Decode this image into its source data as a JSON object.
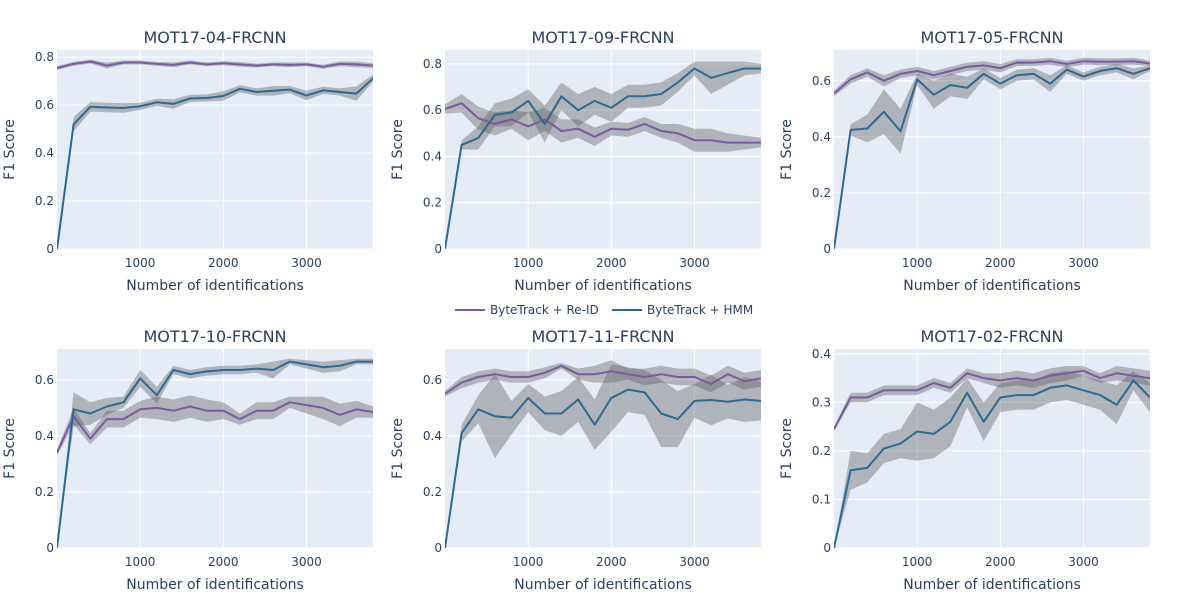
{
  "chart_data": {
    "type": "line",
    "x_positions": [
      0,
      200,
      400,
      600,
      800,
      1000,
      1200,
      1400,
      1600,
      1800,
      2000,
      2200,
      2400,
      2600,
      2800,
      3000,
      3200,
      3400,
      3600,
      3800
    ],
    "xlim": [
      0,
      3800
    ],
    "x_ticks": [
      1000,
      2000,
      3000
    ],
    "xlabel": "Number of identifications",
    "ylabel": "F1 Score",
    "legend": [
      {
        "name": "ByteTrack + Re-ID",
        "color": "#7a5aa5"
      },
      {
        "name": "ByteTrack + HMM",
        "color": "#2a6a96"
      }
    ],
    "band_color": "#5a5a5a",
    "subplots": [
      {
        "title": "MOT17-04-FRCNN",
        "ylim": [
          0,
          0.83
        ],
        "y_ticks": [
          0,
          0.2,
          0.4,
          0.6,
          0.8
        ],
        "series": [
          {
            "name": "ByteTrack + Re-ID",
            "values": [
              0.755,
              0.772,
              0.782,
              0.765,
              0.778,
              0.778,
              0.772,
              0.768,
              0.778,
              0.77,
              0.775,
              0.77,
              0.765,
              0.77,
              0.768,
              0.77,
              0.76,
              0.772,
              0.77,
              0.765
            ],
            "band": [
              0.008,
              0.008,
              0.008,
              0.012,
              0.008,
              0.008,
              0.008,
              0.01,
              0.008,
              0.008,
              0.008,
              0.01,
              0.008,
              0.008,
              0.01,
              0.008,
              0.008,
              0.01,
              0.012,
              0.01
            ]
          },
          {
            "name": "ByteTrack + HMM",
            "values": [
              0.0,
              0.52,
              0.593,
              0.59,
              0.588,
              0.595,
              0.612,
              0.605,
              0.628,
              0.63,
              0.638,
              0.668,
              0.655,
              0.66,
              0.665,
              0.64,
              0.662,
              0.655,
              0.648,
              0.712
            ],
            "band": [
              0.0,
              0.03,
              0.02,
              0.02,
              0.02,
              0.015,
              0.015,
              0.02,
              0.015,
              0.015,
              0.02,
              0.015,
              0.015,
              0.02,
              0.015,
              0.02,
              0.015,
              0.015,
              0.03,
              0.015
            ]
          }
        ]
      },
      {
        "title": "MOT17-09-FRCNN",
        "ylim": [
          0,
          0.86
        ],
        "y_ticks": [
          0,
          0.2,
          0.4,
          0.6,
          0.8
        ],
        "series": [
          {
            "name": "ByteTrack + Re-ID",
            "values": [
              0.605,
              0.63,
              0.565,
              0.54,
              0.56,
              0.53,
              0.56,
              0.51,
              0.52,
              0.485,
              0.52,
              0.515,
              0.54,
              0.51,
              0.5,
              0.47,
              0.47,
              0.46,
              0.46,
              0.46
            ],
            "band": [
              0.02,
              0.04,
              0.05,
              0.05,
              0.04,
              0.06,
              0.05,
              0.05,
              0.04,
              0.04,
              0.03,
              0.03,
              0.03,
              0.03,
              0.04,
              0.05,
              0.05,
              0.04,
              0.03,
              0.02
            ]
          },
          {
            "name": "ByteTrack + HMM",
            "values": [
              0.0,
              0.45,
              0.48,
              0.58,
              0.59,
              0.64,
              0.54,
              0.66,
              0.6,
              0.64,
              0.61,
              0.66,
              0.66,
              0.67,
              0.72,
              0.78,
              0.74,
              0.76,
              0.78,
              0.78
            ],
            "band": [
              0.0,
              0.02,
              0.05,
              0.05,
              0.06,
              0.05,
              0.08,
              0.06,
              0.07,
              0.06,
              0.06,
              0.05,
              0.05,
              0.05,
              0.04,
              0.03,
              0.07,
              0.05,
              0.03,
              0.02
            ]
          }
        ]
      },
      {
        "title": "MOT17-05-FRCNN",
        "ylim": [
          0,
          0.71
        ],
        "y_ticks": [
          0,
          0.2,
          0.4,
          0.6
        ],
        "series": [
          {
            "name": "ByteTrack + Re-ID",
            "values": [
              0.555,
              0.605,
              0.63,
              0.6,
              0.625,
              0.635,
              0.62,
              0.635,
              0.65,
              0.655,
              0.645,
              0.665,
              0.665,
              0.67,
              0.66,
              0.67,
              0.668,
              0.668,
              0.67,
              0.662
            ],
            "band": [
              0.01,
              0.015,
              0.015,
              0.02,
              0.015,
              0.015,
              0.015,
              0.015,
              0.015,
              0.015,
              0.015,
              0.012,
              0.012,
              0.012,
              0.012,
              0.012,
              0.012,
              0.012,
              0.012,
              0.01
            ]
          },
          {
            "name": "ByteTrack + HMM",
            "values": [
              0.0,
              0.425,
              0.43,
              0.49,
              0.42,
              0.605,
              0.55,
              0.585,
              0.575,
              0.625,
              0.59,
              0.62,
              0.625,
              0.59,
              0.64,
              0.615,
              0.635,
              0.645,
              0.625,
              0.645
            ],
            "band": [
              0.0,
              0.02,
              0.05,
              0.08,
              0.08,
              0.02,
              0.05,
              0.04,
              0.04,
              0.02,
              0.02,
              0.02,
              0.02,
              0.03,
              0.015,
              0.015,
              0.015,
              0.015,
              0.02,
              0.01
            ]
          }
        ]
      },
      {
        "title": "MOT17-10-FRCNN",
        "ylim": [
          0,
          0.71
        ],
        "y_ticks": [
          0,
          0.2,
          0.4,
          0.6
        ],
        "series": [
          {
            "name": "ByteTrack + Re-ID",
            "values": [
              0.34,
              0.47,
              0.39,
              0.46,
              0.46,
              0.495,
              0.5,
              0.49,
              0.505,
              0.49,
              0.49,
              0.46,
              0.49,
              0.49,
              0.52,
              0.51,
              0.5,
              0.475,
              0.495,
              0.485
            ],
            "band": [
              0.01,
              0.03,
              0.02,
              0.03,
              0.03,
              0.03,
              0.04,
              0.04,
              0.04,
              0.04,
              0.03,
              0.02,
              0.03,
              0.03,
              0.02,
              0.03,
              0.04,
              0.04,
              0.03,
              0.02
            ]
          },
          {
            "name": "ByteTrack + HMM",
            "values": [
              0.0,
              0.495,
              0.48,
              0.505,
              0.52,
              0.605,
              0.545,
              0.635,
              0.62,
              0.63,
              0.635,
              0.635,
              0.64,
              0.635,
              0.665,
              0.655,
              0.645,
              0.65,
              0.665,
              0.665
            ],
            "band": [
              0.0,
              0.06,
              0.04,
              0.03,
              0.02,
              0.03,
              0.03,
              0.015,
              0.015,
              0.015,
              0.015,
              0.015,
              0.015,
              0.03,
              0.01,
              0.015,
              0.02,
              0.02,
              0.01,
              0.01
            ]
          }
        ]
      },
      {
        "title": "MOT17-11-FRCNN",
        "ylim": [
          0,
          0.71
        ],
        "y_ticks": [
          0,
          0.2,
          0.4,
          0.6
        ],
        "series": [
          {
            "name": "ByteTrack + Re-ID",
            "values": [
              0.55,
              0.59,
              0.61,
              0.62,
              0.61,
              0.61,
              0.625,
              0.65,
              0.62,
              0.62,
              0.63,
              0.62,
              0.61,
              0.62,
              0.61,
              0.61,
              0.585,
              0.62,
              0.595,
              0.605
            ],
            "band": [
              0.01,
              0.02,
              0.02,
              0.02,
              0.02,
              0.02,
              0.02,
              0.01,
              0.02,
              0.03,
              0.04,
              0.02,
              0.03,
              0.03,
              0.03,
              0.03,
              0.03,
              0.03,
              0.03,
              0.03
            ]
          },
          {
            "name": "ByteTrack + HMM",
            "values": [
              0.0,
              0.41,
              0.495,
              0.47,
              0.465,
              0.535,
              0.48,
              0.48,
              0.53,
              0.44,
              0.535,
              0.565,
              0.555,
              0.48,
              0.46,
              0.525,
              0.528,
              0.522,
              0.53,
              0.525
            ],
            "band": [
              0.0,
              0.03,
              0.05,
              0.15,
              0.06,
              0.05,
              0.06,
              0.08,
              0.08,
              0.09,
              0.12,
              0.08,
              0.08,
              0.12,
              0.1,
              0.06,
              0.09,
              0.06,
              0.08,
              0.07
            ]
          }
        ]
      },
      {
        "title": "MOT17-02-FRCNN",
        "ylim": [
          0,
          0.41
        ],
        "y_ticks": [
          0,
          0.1,
          0.2,
          0.3,
          0.4
        ],
        "series": [
          {
            "name": "ByteTrack + Re-ID",
            "values": [
              0.245,
              0.31,
              0.31,
              0.325,
              0.325,
              0.325,
              0.34,
              0.33,
              0.36,
              0.35,
              0.345,
              0.35,
              0.345,
              0.355,
              0.36,
              0.365,
              0.35,
              0.36,
              0.355,
              0.35
            ],
            "band": [
              0.005,
              0.01,
              0.01,
              0.01,
              0.01,
              0.01,
              0.01,
              0.01,
              0.01,
              0.01,
              0.015,
              0.015,
              0.015,
              0.015,
              0.015,
              0.01,
              0.01,
              0.015,
              0.015,
              0.015
            ]
          },
          {
            "name": "ByteTrack + HMM",
            "values": [
              0.0,
              0.16,
              0.165,
              0.205,
              0.215,
              0.24,
              0.235,
              0.26,
              0.32,
              0.26,
              0.31,
              0.315,
              0.315,
              0.33,
              0.335,
              0.325,
              0.315,
              0.295,
              0.345,
              0.31
            ],
            "band": [
              0.0,
              0.04,
              0.03,
              0.03,
              0.03,
              0.06,
              0.05,
              0.05,
              0.03,
              0.04,
              0.03,
              0.03,
              0.03,
              0.03,
              0.03,
              0.03,
              0.03,
              0.04,
              0.02,
              0.03
            ]
          }
        ]
      }
    ]
  }
}
